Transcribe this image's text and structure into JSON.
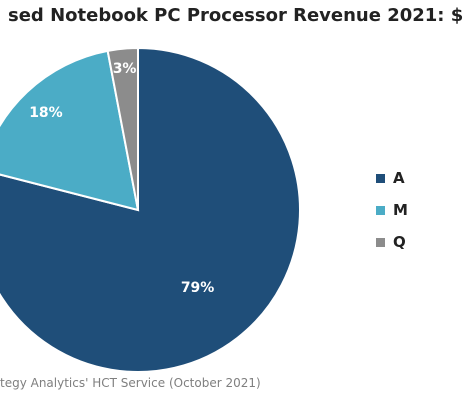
{
  "chart_data": {
    "type": "pie",
    "title": "sed Notebook PC Processor Revenue 2021: $",
    "slices": [
      {
        "label": "A",
        "value": 79,
        "value_label": "79%",
        "color": "#1f4e79"
      },
      {
        "label": "M",
        "value": 18,
        "value_label": "18%",
        "color": "#4bacc6"
      },
      {
        "label": "Q",
        "value": 3,
        "value_label": "3%",
        "color": "#8c8c8c"
      }
    ],
    "start_angle_deg": 0,
    "direction": "clockwise",
    "legend_position": "right",
    "source": "tegy Analytics' HCT Service (October 2021)"
  }
}
